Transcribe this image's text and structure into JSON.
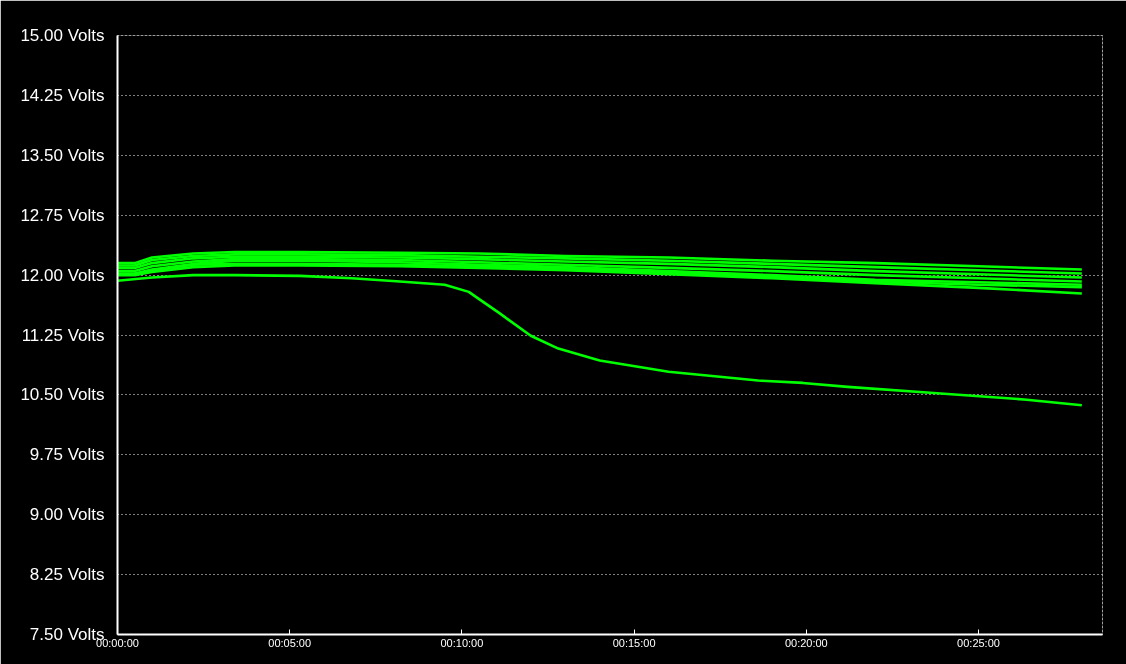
{
  "chart_data": {
    "type": "line",
    "x": [
      0,
      0.5,
      1,
      2.2,
      3.4,
      5.3,
      8.2,
      10.5,
      13,
      16,
      19,
      22,
      25,
      28
    ],
    "xlim": [
      0,
      28.6
    ],
    "xticks": [
      {
        "value": 0,
        "label": "00:00:00"
      },
      {
        "value": 5,
        "label": "00:05:00"
      },
      {
        "value": 10,
        "label": "00:10:00"
      },
      {
        "value": 15,
        "label": "00:15:00"
      },
      {
        "value": 20,
        "label": "00:20:00"
      },
      {
        "value": 25,
        "label": "00:25:00"
      }
    ],
    "ylim": [
      7.5,
      15
    ],
    "yticks": [
      {
        "value": 7.5,
        "label": "7.50 Volts"
      },
      {
        "value": 8.25,
        "label": "8.25 Volts"
      },
      {
        "value": 9,
        "label": "9.00 Volts"
      },
      {
        "value": 9.75,
        "label": "9.75 Volts"
      },
      {
        "value": 10.5,
        "label": "10.50 Volts"
      },
      {
        "value": 11.25,
        "label": "11.25 Volts"
      },
      {
        "value": 12,
        "label": "12.00 Volts"
      },
      {
        "value": 12.75,
        "label": "12.75 Volts"
      },
      {
        "value": 13.5,
        "label": "13.50 Volts"
      },
      {
        "value": 14.25,
        "label": "14.25 Volts"
      },
      {
        "value": 15,
        "label": "15.00 Volts"
      }
    ],
    "grid": "y",
    "series": [
      {
        "color": "#00ff00",
        "values": [
          12.15,
          12.15,
          12.22,
          12.27,
          12.29,
          12.29,
          12.28,
          12.27,
          12.24,
          12.22,
          12.18,
          12.15,
          12.11,
          12.07
        ]
      },
      {
        "color": "#00ff00",
        "values": [
          12.12,
          12.12,
          12.19,
          12.24,
          12.26,
          12.26,
          12.25,
          12.23,
          12.21,
          12.18,
          12.14,
          12.1,
          12.06,
          12.02
        ]
      },
      {
        "color": "#00ff00",
        "values": [
          12.09,
          12.09,
          12.15,
          12.21,
          12.23,
          12.23,
          12.22,
          12.2,
          12.17,
          12.14,
          12.1,
          12.05,
          12.01,
          11.97
        ]
      },
      {
        "color": "#00ff00",
        "values": [
          12.05,
          12.05,
          12.11,
          12.17,
          12.2,
          12.2,
          12.19,
          12.16,
          12.13,
          12.09,
          12.05,
          12.0,
          11.96,
          11.92
        ]
      },
      {
        "color": "#00ff00",
        "values": [
          12.02,
          12.02,
          12.07,
          12.14,
          12.18,
          12.18,
          12.16,
          12.13,
          12.1,
          12.05,
          12.0,
          11.94,
          11.91,
          11.88
        ]
      },
      {
        "color": "#00ff00",
        "values": [
          12.01,
          12.01,
          12.06,
          12.13,
          12.14,
          12.14,
          12.13,
          12.11,
          12.08,
          12.03,
          11.98,
          11.92,
          11.88,
          11.85
        ]
      },
      {
        "color": "#00ff00",
        "values": [
          12.0,
          12.0,
          12.04,
          12.1,
          12.12,
          12.12,
          12.11,
          12.09,
          12.06,
          12.01,
          11.96,
          11.9,
          11.84,
          11.77
        ]
      },
      {
        "color": "#00ff00",
        "x": [
          0,
          1,
          2.2,
          3.4,
          5.3,
          6.8,
          8.2,
          9.5,
          10.2,
          10.5,
          11.1,
          12,
          12.8,
          14,
          16,
          18.6,
          19.9,
          21.2,
          23.8,
          26.4,
          28
        ],
        "values": [
          11.93,
          11.97,
          12.0,
          12.0,
          11.99,
          11.96,
          11.92,
          11.88,
          11.79,
          11.7,
          11.52,
          11.24,
          11.08,
          10.93,
          10.79,
          10.68,
          10.65,
          10.6,
          10.52,
          10.44,
          10.37
        ]
      }
    ]
  }
}
